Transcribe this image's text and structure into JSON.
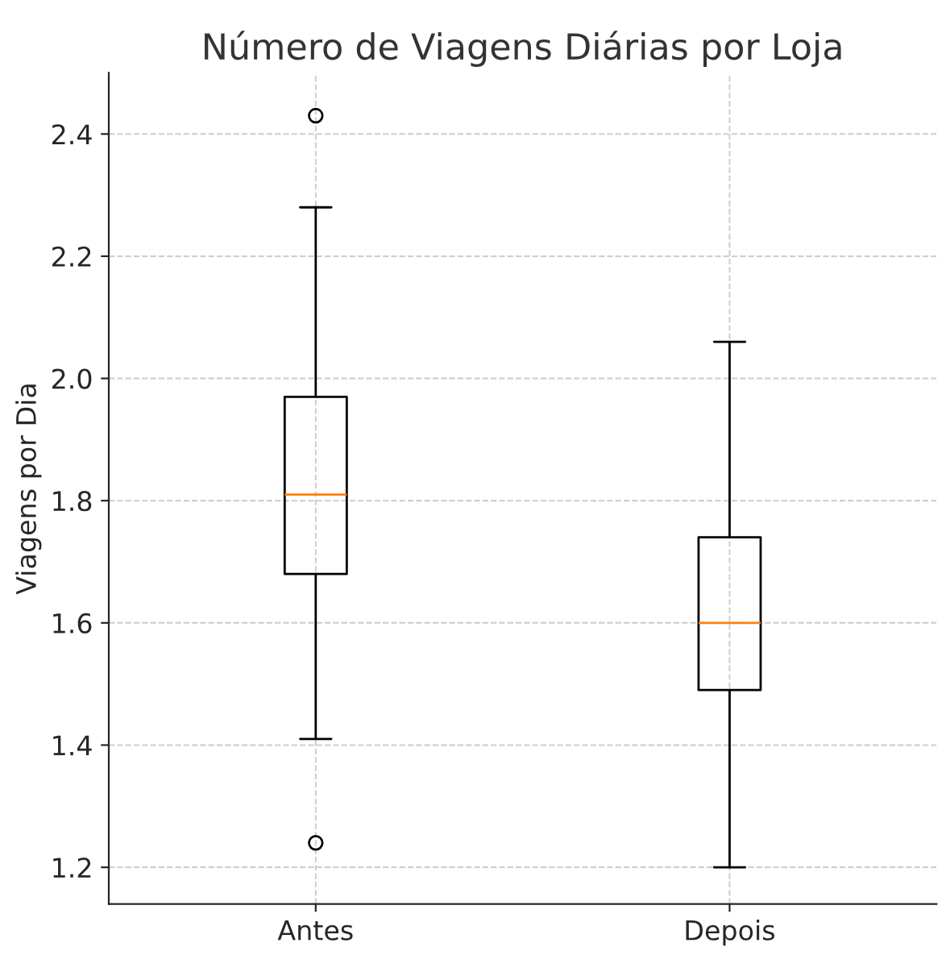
{
  "chart_data": {
    "type": "box",
    "title": "Número de Viagens Diárias por Loja",
    "ylabel": "Viagens por Dia",
    "categories": [
      "Antes",
      "Depois"
    ],
    "boxes": [
      {
        "low": 1.41,
        "q1": 1.68,
        "median": 1.81,
        "q3": 1.97,
        "high": 2.28,
        "outliers": [
          2.43,
          1.24
        ]
      },
      {
        "low": 1.2,
        "q1": 1.49,
        "median": 1.6,
        "q3": 1.74,
        "high": 2.06
      }
    ],
    "ylim": [
      1.14,
      2.5
    ],
    "yticks": [
      {
        "value": 1.2,
        "label": "1.2"
      },
      {
        "value": 1.4,
        "label": "1.4"
      },
      {
        "value": 1.6,
        "label": "1.6"
      },
      {
        "value": 1.8,
        "label": "1.8"
      },
      {
        "value": 2.0,
        "label": "2.0"
      },
      {
        "value": 2.2,
        "label": "2.2"
      },
      {
        "value": 2.4,
        "label": "2.4"
      }
    ],
    "grid": true
  }
}
